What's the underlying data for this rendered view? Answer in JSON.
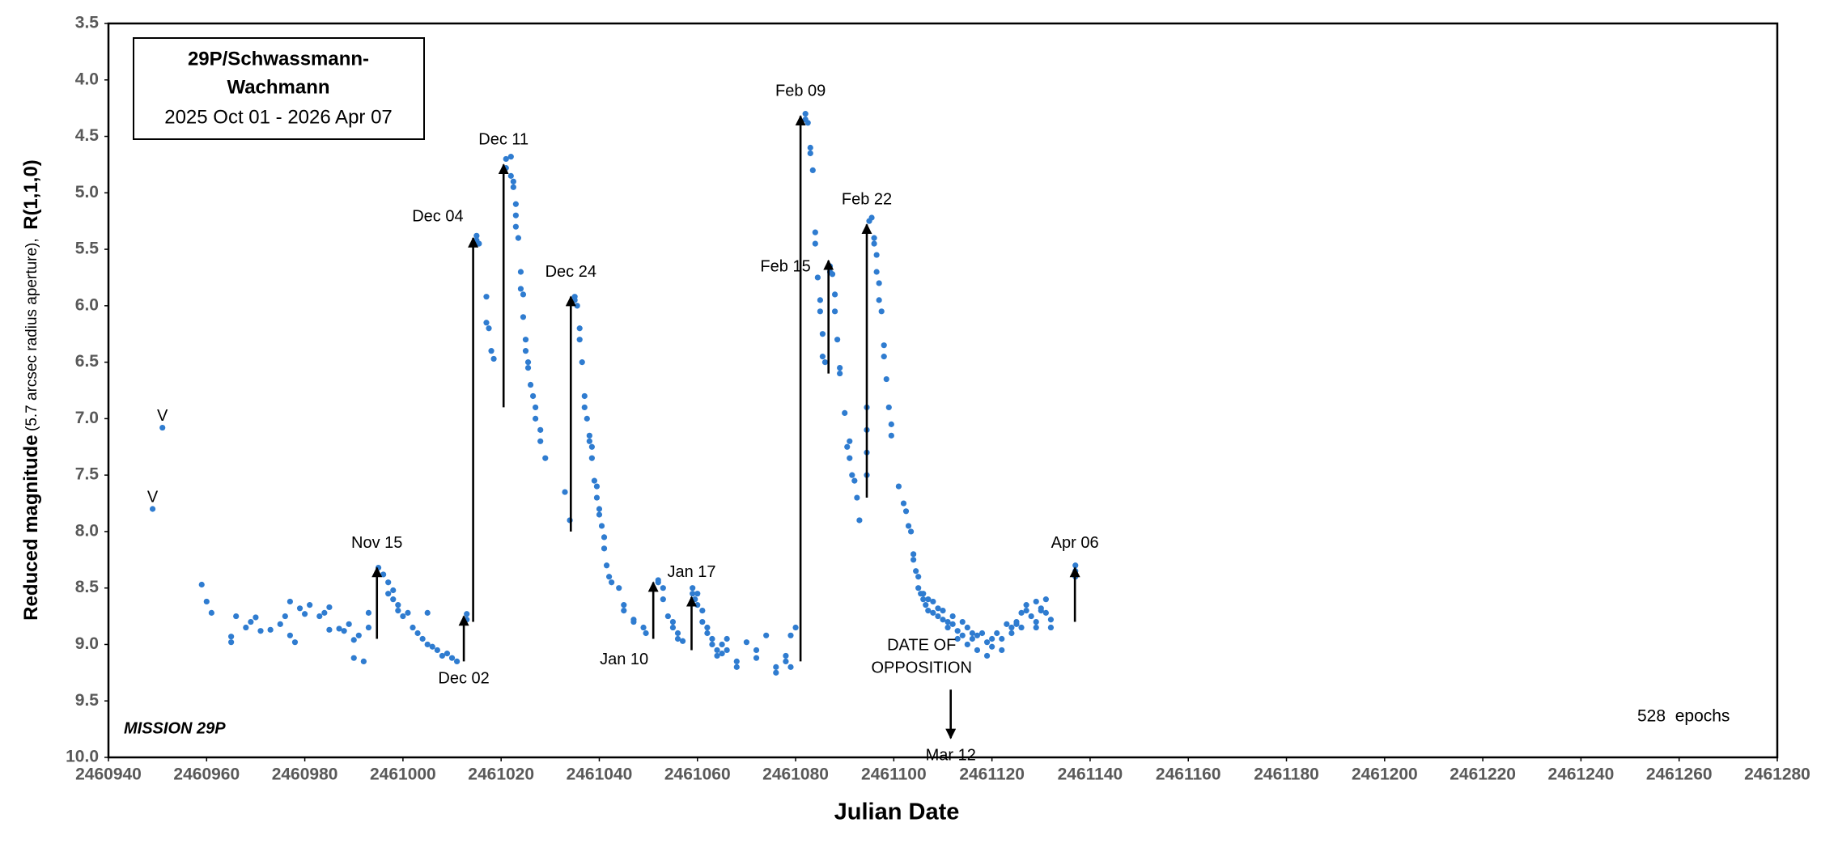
{
  "chart_data": {
    "type": "scatter",
    "title_lines": [
      "29P/Schwassmann-",
      "Wachmann"
    ],
    "subtitle": "2025 Oct 01 - 2026 Apr 07",
    "y_label_parts": [
      "Reduced magnitude",
      "(5.7 arcsec radius aperture),",
      "R(1,1,0)"
    ],
    "x_label": "Julian Date",
    "mission": "MISSION 29P",
    "epochs": "528  epochs",
    "xlim": [
      2460940,
      2461280
    ],
    "xticks": [
      2460940,
      2460960,
      2460980,
      2461000,
      2461020,
      2461040,
      2461060,
      2461080,
      2461100,
      2461120,
      2461140,
      2461160,
      2461180,
      2461200,
      2461220,
      2461240,
      2461260,
      2461280
    ],
    "ylim": [
      3.5,
      10
    ],
    "y_inverted": true,
    "yticks": [
      3.5,
      {
        "value": 4,
        "label": "4.0"
      },
      4.5,
      {
        "value": 5,
        "label": "5.0"
      },
      5.5,
      {
        "value": 6,
        "label": "6.0"
      },
      6.5,
      {
        "value": 7,
        "label": "7.0"
      },
      7.5,
      {
        "value": 8,
        "label": "8.0"
      },
      8.5,
      {
        "value": 9,
        "label": "9.0"
      },
      9.5,
      {
        "value": 10,
        "label": "10.0"
      }
    ],
    "grid": false,
    "arrow_color": "#000000",
    "series": [
      {
        "color": "#2f7cd0",
        "x": [
          2460949,
          2460951,
          2460959,
          2460960,
          2460961,
          2460965,
          2460965,
          2460966,
          2460968,
          2460969,
          2460970,
          2460971,
          2460973,
          2460975,
          2460976,
          2460977,
          2460977,
          2460978,
          2460979,
          2460980,
          2460981,
          2460983,
          2460984,
          2460985,
          2460985,
          2460987,
          2460988,
          2460989,
          2460990,
          2460990,
          2460991,
          2460992,
          2460993,
          2460993,
          2460995,
          2460996,
          2460997,
          2460997,
          2460998,
          2460998,
          2460999,
          2460999,
          2461000,
          2461001,
          2461002,
          2461003,
          2461004,
          2461005,
          2461005,
          2461006,
          2461007,
          2461008,
          2461009,
          2461010,
          2461011,
          2461013,
          2461013,
          2461015,
          2461015,
          2461015.5,
          2461017,
          2461017,
          2461017.5,
          2461018,
          2461018.5,
          2461021,
          2461021,
          2461022,
          2461022,
          2461022.5,
          2461022.5,
          2461023,
          2461023,
          2461023,
          2461023.5,
          2461024,
          2461024,
          2461024.5,
          2461024.5,
          2461025,
          2461025,
          2461025.5,
          2461025.5,
          2461026,
          2461026.5,
          2461027,
          2461027,
          2461028,
          2461028,
          2461029,
          2461033,
          2461034,
          2461035,
          2461035,
          2461035.5,
          2461036,
          2461036,
          2461036.5,
          2461037,
          2461037,
          2461037.5,
          2461038,
          2461038,
          2461038.5,
          2461038.5,
          2461039,
          2461039.5,
          2461039.5,
          2461040,
          2461040,
          2461040.5,
          2461041,
          2461041,
          2461041.5,
          2461042,
          2461042.5,
          2461044,
          2461045,
          2461045,
          2461047,
          2461047,
          2461049,
          2461049.5,
          2461052,
          2461052,
          2461053,
          2461053,
          2461054,
          2461055,
          2461055,
          2461056,
          2461056,
          2461057,
          2461059,
          2461059,
          2461059.5,
          2461060,
          2461060,
          2461061,
          2461061,
          2461062,
          2461062,
          2461063,
          2461063,
          2461064,
          2461064,
          2461065,
          2461065,
          2461066,
          2461066,
          2461068,
          2461068,
          2461070,
          2461072,
          2461072,
          2461074,
          2461076,
          2461076,
          2461078,
          2461078,
          2461079,
          2461079,
          2461080,
          2461082,
          2461082,
          2461082.5,
          2461083,
          2461083,
          2461083.5,
          2461084,
          2461084,
          2461084.5,
          2461085,
          2461085,
          2461085.5,
          2461085.5,
          2461086,
          2461087,
          2461087,
          2461087.5,
          2461088,
          2461088,
          2461088.5,
          2461089,
          2461089,
          2461090,
          2461090.5,
          2461091,
          2461091,
          2461091.5,
          2461092,
          2461092.5,
          2461093,
          2461094.5,
          2461094.5,
          2461094.5,
          2461094.5,
          2461095,
          2461095.5,
          2461096,
          2461096,
          2461096.5,
          2461096.5,
          2461097,
          2461097,
          2461097.5,
          2461098,
          2461098,
          2461098.5,
          2461099,
          2461099.5,
          2461099.5,
          2461101,
          2461102,
          2461102.5,
          2461103,
          2461103.5,
          2461104,
          2461104,
          2461104.5,
          2461105,
          2461105,
          2461105.5,
          2461106,
          2461106,
          2461106.5,
          2461107,
          2461107,
          2461108,
          2461108,
          2461109,
          2461109,
          2461110,
          2461110,
          2461111,
          2461111,
          2461112,
          2461112,
          2461113,
          2461113,
          2461114,
          2461114,
          2461115,
          2461115,
          2461116,
          2461116,
          2461117,
          2461117,
          2461118,
          2461119,
          2461119,
          2461120,
          2461120,
          2461121,
          2461122,
          2461122,
          2461123,
          2461124,
          2461124,
          2461125,
          2461125,
          2461126,
          2461126,
          2461127,
          2461127,
          2461128,
          2461129,
          2461129,
          2461129,
          2461130,
          2461130,
          2461131,
          2461131,
          2461132,
          2461132,
          2461137,
          2461137,
          2461137
        ],
        "values": [
          7.8,
          7.08,
          8.47,
          8.62,
          8.72,
          8.93,
          8.98,
          8.75,
          8.85,
          8.8,
          8.76,
          8.88,
          8.87,
          8.82,
          8.75,
          8.92,
          8.62,
          8.98,
          8.68,
          8.73,
          8.65,
          8.75,
          8.72,
          8.67,
          8.87,
          8.86,
          8.88,
          8.82,
          8.96,
          9.12,
          8.92,
          9.15,
          8.72,
          8.85,
          8.32,
          8.38,
          8.45,
          8.55,
          8.52,
          8.6,
          8.7,
          8.65,
          8.75,
          8.72,
          8.85,
          8.9,
          8.95,
          9.0,
          8.72,
          9.02,
          9.05,
          9.1,
          9.08,
          9.12,
          9.15,
          8.73,
          8.78,
          5.38,
          5.42,
          5.45,
          5.92,
          6.15,
          6.2,
          6.4,
          6.47,
          4.78,
          4.7,
          4.68,
          4.85,
          4.9,
          4.95,
          5.1,
          5.2,
          5.3,
          5.4,
          5.7,
          5.85,
          5.9,
          6.1,
          6.3,
          6.4,
          6.5,
          6.55,
          6.7,
          6.8,
          6.9,
          7.0,
          7.1,
          7.2,
          7.35,
          7.65,
          7.9,
          5.92,
          5.95,
          6.0,
          6.2,
          6.3,
          6.5,
          6.8,
          6.9,
          7.0,
          7.15,
          7.2,
          7.25,
          7.35,
          7.55,
          7.6,
          7.7,
          7.8,
          7.85,
          7.95,
          8.05,
          8.15,
          8.3,
          8.4,
          8.45,
          8.5,
          8.65,
          8.7,
          8.78,
          8.8,
          8.85,
          8.9,
          8.43,
          8.45,
          8.5,
          8.6,
          8.75,
          8.8,
          8.85,
          8.9,
          8.95,
          8.97,
          8.5,
          8.55,
          8.6,
          8.55,
          8.65,
          8.7,
          8.8,
          8.85,
          8.9,
          8.95,
          9.0,
          9.05,
          9.1,
          9.0,
          9.08,
          8.95,
          9.05,
          9.2,
          9.15,
          8.98,
          9.12,
          9.05,
          8.92,
          9.2,
          9.25,
          9.1,
          9.15,
          9.2,
          8.92,
          8.85,
          4.35,
          4.3,
          4.38,
          4.6,
          4.65,
          4.8,
          5.35,
          5.45,
          5.75,
          5.95,
          6.05,
          6.25,
          6.45,
          6.5,
          5.65,
          5.7,
          5.72,
          5.9,
          6.05,
          6.3,
          6.55,
          6.6,
          6.95,
          7.25,
          7.2,
          7.35,
          7.5,
          7.55,
          7.7,
          7.9,
          6.9,
          7.1,
          7.3,
          7.5,
          5.25,
          5.22,
          5.4,
          5.45,
          5.55,
          5.7,
          5.8,
          5.95,
          6.05,
          6.35,
          6.45,
          6.65,
          6.9,
          7.05,
          7.15,
          7.6,
          7.75,
          7.82,
          7.95,
          8.0,
          8.2,
          8.25,
          8.35,
          8.4,
          8.5,
          8.55,
          8.55,
          8.6,
          8.65,
          8.6,
          8.7,
          8.72,
          8.62,
          8.68,
          8.75,
          8.78,
          8.7,
          8.85,
          8.8,
          8.75,
          8.82,
          8.95,
          8.88,
          8.92,
          8.8,
          9.0,
          8.85,
          8.95,
          8.9,
          9.05,
          8.92,
          8.9,
          9.1,
          8.98,
          8.95,
          9.02,
          8.9,
          9.05,
          8.95,
          8.82,
          8.85,
          8.9,
          8.82,
          8.8,
          8.72,
          8.85,
          8.7,
          8.65,
          8.75,
          8.8,
          8.85,
          8.62,
          8.7,
          8.68,
          8.6,
          8.72,
          8.78,
          8.85,
          8.3,
          8.35,
          8.4
        ]
      }
    ],
    "point_labels": [
      {
        "label": "V",
        "x": 2460949,
        "y": 7.8
      },
      {
        "label": "V",
        "x": 2460951,
        "y": 7.08
      }
    ],
    "arrows": [
      {
        "label": "Nov 15",
        "x": 2460994.7,
        "from": 8.95,
        "to": 8.32,
        "label_side": "top"
      },
      {
        "label": "Dec 02",
        "x": 2461012.4,
        "from": 9.15,
        "to": 8.75,
        "label_side": "bottom"
      },
      {
        "label": "Dec 04",
        "x": 2461014.3,
        "from": 8.8,
        "to": 5.4,
        "label_side": "top-left"
      },
      {
        "label": "Dec 11",
        "x": 2461020.5,
        "from": 6.9,
        "to": 4.75,
        "label_side": "top"
      },
      {
        "label": "Dec 24",
        "x": 2461034.2,
        "from": 8.0,
        "to": 5.92,
        "label_side": "top"
      },
      {
        "label": "Jan 10",
        "x": 2461051,
        "from": 8.95,
        "to": 8.45,
        "label_side": "bottom-left"
      },
      {
        "label": "Jan 17",
        "x": 2461058.8,
        "from": 9.05,
        "to": 8.58,
        "label_side": "top"
      },
      {
        "label": "Feb 09",
        "x": 2461081,
        "from": 9.15,
        "to": 4.32,
        "label_side": "top"
      },
      {
        "label": "Feb 15",
        "x": 2461086.7,
        "from": 6.6,
        "to": 5.6,
        "label_side": "left"
      },
      {
        "label": "Feb 22",
        "x": 2461094.5,
        "from": 7.7,
        "to": 5.28,
        "label_side": "top"
      },
      {
        "label": "Apr 06",
        "x": 2461136.9,
        "from": 8.8,
        "to": 8.32,
        "label_side": "top"
      },
      {
        "label": "Mar 12",
        "x": 2461111.6,
        "from": 9.4,
        "to": 9.83,
        "label_side": "bottom"
      }
    ],
    "opposition_note": [
      "DATE OF",
      "OPPOSITION"
    ]
  }
}
